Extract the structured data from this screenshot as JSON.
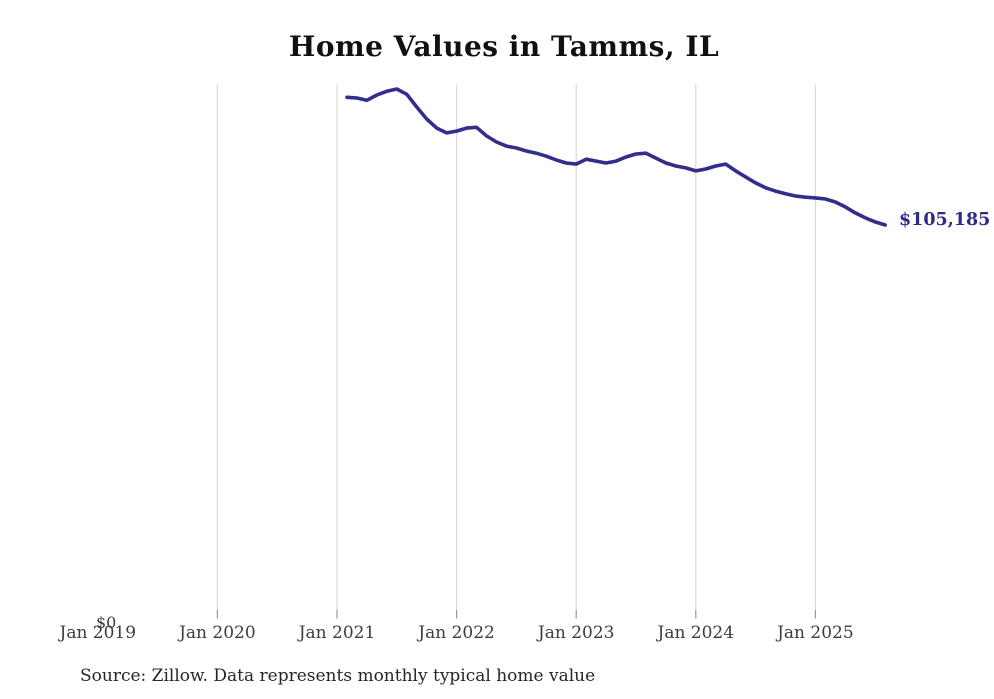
{
  "title": "Home Values in Tamms, IL",
  "source_note": "Source: Zillow. Data represents monthly typical home value",
  "latest_value_label": "$105,185",
  "y_axis": {
    "zero_label": "$0"
  },
  "x_axis": {
    "tick_labels": [
      "Jan 2019",
      "Jan 2020",
      "Jan 2021",
      "Jan 2022",
      "Jan 2023",
      "Jan 2024",
      "Jan 2025"
    ],
    "gridline_months": [
      "2020-01",
      "2021-01",
      "2022-01",
      "2023-01",
      "2024-01",
      "2025-01"
    ]
  },
  "colors": {
    "line": "#322e8c",
    "latest_label": "#2e2a85",
    "gridline": "#d9d9d9",
    "tick": "#999999",
    "axis_text": "#3d3d3d",
    "title_text": "#111111",
    "source_text": "#262626",
    "background": "#ffffff"
  },
  "chart_data": {
    "type": "line",
    "title": "Home Values in Tamms, IL",
    "series_name": "Typical home value (USD), monthly",
    "xlabel": "",
    "ylabel": "",
    "legend": false,
    "grid": "vertical-only",
    "x_range": [
      "2019-01",
      "2025-09"
    ],
    "ylim": [
      0,
      142500
    ],
    "x": [
      "2021-02",
      "2021-03",
      "2021-04",
      "2021-05",
      "2021-06",
      "2021-07",
      "2021-08",
      "2021-09",
      "2021-10",
      "2021-11",
      "2021-12",
      "2022-01",
      "2022-02",
      "2022-03",
      "2022-04",
      "2022-05",
      "2022-06",
      "2022-07",
      "2022-08",
      "2022-09",
      "2022-10",
      "2022-11",
      "2022-12",
      "2023-01",
      "2023-02",
      "2023-03",
      "2023-04",
      "2023-05",
      "2023-06",
      "2023-07",
      "2023-08",
      "2023-09",
      "2023-10",
      "2023-11",
      "2023-12",
      "2024-01",
      "2024-02",
      "2024-03",
      "2024-04",
      "2024-05",
      "2024-06",
      "2024-07",
      "2024-08",
      "2024-09",
      "2024-10",
      "2024-11",
      "2024-12",
      "2025-01",
      "2025-02",
      "2025-03",
      "2025-04",
      "2025-05",
      "2025-06",
      "2025-07",
      "2025-08"
    ],
    "values": [
      139200,
      139000,
      138400,
      139800,
      140800,
      141400,
      140000,
      136600,
      133400,
      131000,
      129700,
      130200,
      131000,
      131200,
      128900,
      127300,
      126200,
      125700,
      124900,
      124300,
      123500,
      122500,
      121700,
      121400,
      122700,
      122200,
      121700,
      122200,
      123300,
      124100,
      124300,
      123000,
      121700,
      120900,
      120400,
      119600,
      120100,
      120900,
      121400,
      119600,
      118000,
      116400,
      115100,
      114200,
      113500,
      112900,
      112600,
      112400,
      112100,
      111300,
      110000,
      108400,
      107100,
      106000,
      105185
    ],
    "latest": {
      "x": "2025-08",
      "value": 105185,
      "label": "$105,185"
    }
  }
}
